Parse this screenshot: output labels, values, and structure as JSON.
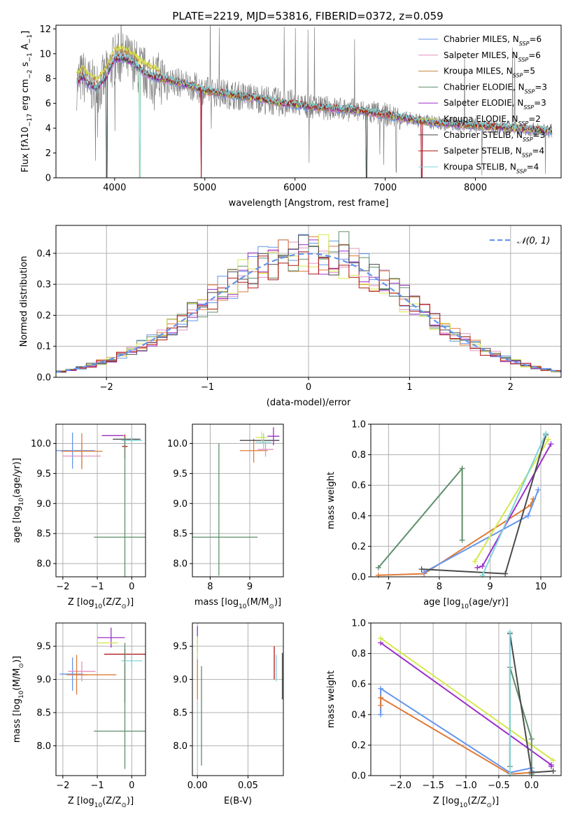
{
  "figure_title": "PLATE=2219, MJD=53816, FIBERID=0372, z=0.059",
  "colors": {
    "data": "#808080",
    "chabrier_miles": "#6495ed",
    "salpeter_miles": "#e392c0",
    "kroupa_miles": "#c08a3a",
    "chabrier_elodie": "#5f8f6a",
    "salpeter_elodie": "#9b30c9",
    "kroupa_elodie": "#d6e84d",
    "chabrier_stelib": "#4a4a4a",
    "salpeter_stelib": "#b01818",
    "kroupa_stelib": "#7fd4d8",
    "orange_mix": "#e07b39",
    "grid": "#b0b0b0"
  },
  "chart_data": [
    {
      "id": "spectrum",
      "type": "line",
      "title": "PLATE=2219, MJD=53816, FIBERID=0372, z=0.059",
      "xlabel": "wavelength [Angstrom, rest frame]",
      "ylabel_parts": [
        "Flux [f",
        "λ",
        "10",
        "−17",
        " erg cm",
        "−2",
        " s",
        "−1",
        " A",
        "−1",
        "]"
      ],
      "xlim": [
        3350,
        8950
      ],
      "ylim": [
        0,
        12.3
      ],
      "xticks": [
        "4000",
        "5000",
        "6000",
        "7000",
        "8000"
      ],
      "xtick_values": [
        4000,
        5000,
        6000,
        7000,
        8000
      ],
      "yticks": [
        "0",
        "2",
        "4",
        "6",
        "8",
        "10",
        "12"
      ],
      "ytick_values": [
        0,
        2,
        4,
        6,
        8,
        10,
        12
      ],
      "grid": false,
      "legend_position": "top-right",
      "legend": [
        {
          "label": "Chabrier MILES, N",
          "sub": "SSP",
          "suffix": "=6",
          "color": "#6495ed"
        },
        {
          "label": "Salpeter MILES, N",
          "sub": "SSP",
          "suffix": "=6",
          "color": "#e392c0"
        },
        {
          "label": "Kroupa MILES, N",
          "sub": "SSP",
          "suffix": "=5",
          "color": "#c08a3a"
        },
        {
          "label": "Chabrier ELODIE, N",
          "sub": "SSP",
          "suffix": "=3",
          "color": "#5f8f6a"
        },
        {
          "label": "Salpeter ELODIE, N",
          "sub": "SSP",
          "suffix": "=3",
          "color": "#9b30c9"
        },
        {
          "label": "Kroupa ELODIE, N",
          "sub": "SSP",
          "suffix": "=2",
          "color": "#d6e84d"
        },
        {
          "label": "Chabrier STELIB, N",
          "sub": "SSP",
          "suffix": "=3",
          "color": "#4a4a4a"
        },
        {
          "label": "Salpeter STELIB, N",
          "sub": "SSP",
          "suffix": "=4",
          "color": "#b01818"
        },
        {
          "label": "Kroupa STELIB, N",
          "sub": "SSP",
          "suffix": "=4",
          "color": "#7fd4d8"
        }
      ],
      "continuum_model": {
        "x": [
          3580,
          3650,
          3700,
          3800,
          3900,
          4000,
          4100,
          4200,
          4300,
          4400,
          4500,
          4600,
          4700,
          4800,
          4900,
          5000,
          5200,
          5400,
          5600,
          5800,
          6000,
          6200,
          6400,
          6600,
          6800,
          7000,
          7200,
          7400,
          7600,
          7800,
          8000,
          8200,
          8400,
          8600,
          8800
        ],
        "y": [
          7.6,
          8.2,
          7.6,
          7.2,
          8.0,
          9.6,
          9.6,
          9.3,
          8.6,
          8.2,
          8.0,
          7.9,
          7.7,
          7.5,
          7.3,
          7.0,
          6.8,
          6.6,
          6.4,
          6.1,
          5.9,
          5.7,
          5.6,
          5.5,
          5.3,
          5.1,
          4.8,
          4.6,
          4.4,
          4.3,
          4.2,
          4.1,
          4.0,
          3.9,
          3.8
        ]
      },
      "spectrum_note_visible": "",
      "drops": [
        3915,
        4280,
        4960,
        6795,
        7405
      ]
    },
    {
      "id": "residuals",
      "type": "histogram",
      "xlabel": "(data-model)/error",
      "ylabel": "Normed distribution",
      "xlim": [
        -2.5,
        2.5
      ],
      "ylim": [
        0,
        0.49
      ],
      "xticks": [
        "−2",
        "−1",
        "0",
        "1",
        "2"
      ],
      "xtick_values": [
        -2,
        -1,
        0,
        1,
        2
      ],
      "yticks": [
        "0.0",
        "0.1",
        "0.2",
        "0.3",
        "0.4"
      ],
      "ytick_values": [
        0,
        0.1,
        0.2,
        0.3,
        0.4
      ],
      "grid": true,
      "legend_position": "top-right",
      "legend": [
        {
          "label": "𝒩(0, 1)",
          "color": "#6495ed",
          "dashed": true
        }
      ],
      "bin_width": 0.1,
      "bin_start": -2.5,
      "gaussian": {
        "mean": 0,
        "sigma": 1,
        "style": "dashed"
      }
    },
    {
      "id": "age_vs_Z",
      "type": "scatter",
      "xlabel_parts": [
        "Z [log",
        "10",
        "(Z/Z",
        "⊙",
        ")]"
      ],
      "ylabel_parts": [
        "age  [log",
        "10",
        "(age/yr)]"
      ],
      "xlim": [
        -2.2,
        0.4
      ],
      "ylim": [
        7.78,
        10.32
      ],
      "xticks": [
        "−2",
        "−1",
        "0"
      ],
      "xtick_values": [
        -2,
        -1,
        0
      ],
      "yticks": [
        "8.0",
        "8.5",
        "9.0",
        "9.5",
        "10.0"
      ],
      "ytick_values": [
        8.0,
        8.5,
        9.0,
        9.5,
        10.0
      ],
      "grid": true,
      "points": [
        {
          "x": -1.72,
          "y": 9.88,
          "xerr": 0.65,
          "yerr": 0.3,
          "color": "#6495ed"
        },
        {
          "x": -1.9,
          "y": 9.88,
          "xerr": 0.1,
          "yerr": 0.0,
          "color": "#6495ed"
        },
        {
          "x": -1.45,
          "y": 9.79,
          "xerr": 0.55,
          "yerr": 0.2,
          "color": "#e392c0"
        },
        {
          "x": -1.45,
          "y": 9.87,
          "xerr": 0.6,
          "yerr": 0.3,
          "color": "#e07b39"
        },
        {
          "x": -0.55,
          "y": 10.13,
          "xerr": 0.3,
          "yerr": 0.0,
          "color": "#d6e84d"
        },
        {
          "x": -0.55,
          "y": 10.13,
          "xerr": 0.32,
          "yerr": 0.0,
          "color": "#9b30c9"
        },
        {
          "x": -0.2,
          "y": 9.95,
          "xerr": 0.08,
          "yerr": 0.2,
          "color": "#b01818"
        },
        {
          "x": -0.15,
          "y": 10.07,
          "xerr": 0.4,
          "yerr": 0.0,
          "color": "#4a4a4a"
        },
        {
          "x": 0.0,
          "y": 10.05,
          "xerr": 0.3,
          "yerr": 0.08,
          "color": "#7fd4d8"
        },
        {
          "x": -0.3,
          "y": 8.44,
          "xerr": 0.8,
          "yerr": 0.0,
          "color": "#5f8f6a"
        },
        {
          "x": -0.2,
          "y": 8.9,
          "xerr": 0.0,
          "yerr": 1.2,
          "color": "#5f8f6a"
        }
      ]
    },
    {
      "id": "age_vs_mass",
      "type": "scatter",
      "xlabel_parts": [
        "mass [log",
        "10",
        "(M/M",
        "⊙",
        ")]"
      ],
      "xlim": [
        7.55,
        9.85
      ],
      "ylim": [
        7.78,
        10.32
      ],
      "xticks": [
        "8",
        "9"
      ],
      "xtick_values": [
        8,
        9
      ],
      "yticks": [
        "8.0",
        "8.5",
        "9.0",
        "9.5",
        "10.0"
      ],
      "ytick_values": [
        8.0,
        8.5,
        9.0,
        9.5,
        10.0
      ],
      "grid": true,
      "points": [
        {
          "x": 8.22,
          "y": 8.44,
          "xerr": 0.98,
          "yerr": 0.0,
          "color": "#5f8f6a"
        },
        {
          "x": 8.22,
          "y": 8.9,
          "xerr": 0.0,
          "yerr": 1.1,
          "color": "#5f8f6a"
        },
        {
          "x": 9.1,
          "y": 9.88,
          "xerr": 0.35,
          "yerr": 0.2,
          "color": "#e07b39"
        },
        {
          "x": 9.25,
          "y": 10.05,
          "xerr": 0.5,
          "yerr": 0.0,
          "color": "#4a4a4a"
        },
        {
          "x": 9.4,
          "y": 9.9,
          "xerr": 0.2,
          "yerr": 0.12,
          "color": "#e392c0"
        },
        {
          "x": 9.6,
          "y": 10.12,
          "xerr": 0.15,
          "yerr": 0.15,
          "color": "#9b30c9"
        },
        {
          "x": 9.3,
          "y": 10.1,
          "xerr": 0.15,
          "yerr": 0.1,
          "color": "#d6e84d"
        },
        {
          "x": 9.35,
          "y": 10.02,
          "xerr": 0.2,
          "yerr": 0.15,
          "color": "#7fd4d8"
        }
      ]
    },
    {
      "id": "weight_vs_age",
      "type": "line",
      "xlabel_parts": [
        "age  [log",
        "10",
        "(age/yr)]"
      ],
      "ylabel": "mass weight",
      "xlim": [
        6.65,
        10.4
      ],
      "ylim": [
        0,
        1.0
      ],
      "xticks": [
        "7",
        "8",
        "9",
        "10"
      ],
      "xtick_values": [
        7,
        8,
        9,
        10
      ],
      "yticks": [
        "0.0",
        "0.2",
        "0.4",
        "0.6",
        "0.8",
        "1.0"
      ],
      "ytick_values": [
        0,
        0.2,
        0.4,
        0.6,
        0.8,
        1.0
      ],
      "grid": true,
      "series": [
        {
          "color": "#5f8f6a",
          "x": [
            6.8,
            8.45,
            8.45
          ],
          "y": [
            0.06,
            0.71,
            0.24
          ]
        },
        {
          "color": "#e07b39",
          "x": [
            6.8,
            7.7,
            9.8,
            9.85
          ],
          "y": [
            0.01,
            0.02,
            0.47,
            0.51
          ]
        },
        {
          "color": "#6495ed",
          "x": [
            7.7,
            9.75,
            9.95
          ],
          "y": [
            0.03,
            0.4,
            0.57
          ]
        },
        {
          "color": "#9b30c9",
          "x": [
            8.75,
            8.85,
            10.2
          ],
          "y": [
            0.06,
            0.07,
            0.87
          ]
        },
        {
          "color": "#d6e84d",
          "x": [
            8.7,
            10.15
          ],
          "y": [
            0.1,
            0.9
          ]
        },
        {
          "color": "#4a4a4a",
          "x": [
            7.65,
            9.3,
            10.1
          ],
          "y": [
            0.05,
            0.02,
            0.93
          ]
        },
        {
          "color": "#7fd4d8",
          "x": [
            8.85,
            10.1
          ],
          "y": [
            0.01,
            0.94
          ]
        }
      ]
    },
    {
      "id": "mass_vs_Z",
      "type": "scatter",
      "xlabel_parts": [
        "Z [log",
        "10",
        "(Z/Z",
        "⊙",
        ")]"
      ],
      "ylabel_parts": [
        "mass [log",
        "10",
        "(M/M",
        "⊙",
        ")]"
      ],
      "xlim": [
        -2.2,
        0.4
      ],
      "ylim": [
        7.55,
        9.85
      ],
      "xticks": [
        "−2",
        "−1",
        "0"
      ],
      "xtick_values": [
        -2,
        -1,
        0
      ],
      "yticks": [
        "8.0",
        "8.5",
        "9.0",
        "9.5"
      ],
      "ytick_values": [
        8.0,
        8.5,
        9.0,
        9.5
      ],
      "grid": true,
      "points": [
        {
          "x": -1.72,
          "y": 9.08,
          "xerr": 0.3,
          "yerr": 0.25,
          "color": "#6495ed"
        },
        {
          "x": -1.9,
          "y": 9.08,
          "xerr": 0.2,
          "yerr": 0.0,
          "color": "#6495ed"
        },
        {
          "x": -1.45,
          "y": 9.12,
          "xerr": 0.4,
          "yerr": 0.15,
          "color": "#e392c0"
        },
        {
          "x": -1.6,
          "y": 9.07,
          "xerr": 0.3,
          "yerr": 0.3,
          "color": "#e07b39"
        },
        {
          "x": -1.0,
          "y": 9.07,
          "xerr": 0.55,
          "yerr": 0.0,
          "color": "#e07b39"
        },
        {
          "x": -0.6,
          "y": 9.63,
          "xerr": 0.4,
          "yerr": 0.15,
          "color": "#9b30c9"
        },
        {
          "x": -0.7,
          "y": 9.55,
          "xerr": 0.3,
          "yerr": 0.0,
          "color": "#d6e84d"
        },
        {
          "x": -0.2,
          "y": 9.38,
          "xerr": 0.6,
          "yerr": 0.08,
          "color": "#b01818"
        },
        {
          "x": 0.0,
          "y": 9.28,
          "xerr": 0.3,
          "yerr": 0.1,
          "color": "#7fd4d8"
        },
        {
          "x": -0.2,
          "y": 8.95,
          "xerr": 0.0,
          "yerr": 0.3,
          "color": "#4a4a4a"
        },
        {
          "x": -0.3,
          "y": 8.22,
          "xerr": 0.8,
          "yerr": 0.0,
          "color": "#5f8f6a"
        },
        {
          "x": -0.2,
          "y": 8.6,
          "xerr": 0.0,
          "yerr": 0.95,
          "color": "#5f8f6a"
        }
      ]
    },
    {
      "id": "mass_vs_EBV",
      "type": "scatter",
      "xlabel": "E(B-V)",
      "xlim": [
        -0.005,
        0.085
      ],
      "ylim": [
        7.55,
        9.85
      ],
      "xticks": [
        "0.00",
        "0.05"
      ],
      "xtick_values": [
        0.0,
        0.05
      ],
      "yticks": [
        "8.0",
        "8.5",
        "9.0",
        "9.5"
      ],
      "ytick_values": [
        8.0,
        8.5,
        9.0,
        9.5
      ],
      "grid": true,
      "points": [
        {
          "x": 0.0,
          "y": 9.6,
          "xerr": 0.0,
          "yerr": 0.2,
          "color": "#9b30c9"
        },
        {
          "x": 0.0,
          "y": 9.5,
          "xerr": 0.0,
          "yerr": 0.15,
          "color": "#d6e84d"
        },
        {
          "x": 0.0,
          "y": 9.0,
          "xerr": 0.0,
          "yerr": 0.3,
          "color": "#e07b39"
        },
        {
          "x": 0.004,
          "y": 8.45,
          "xerr": 0.0,
          "yerr": 0.75,
          "color": "#5f8f6a"
        },
        {
          "x": 0.076,
          "y": 9.25,
          "xerr": 0.0,
          "yerr": 0.25,
          "color": "#b01818"
        },
        {
          "x": 0.078,
          "y": 9.17,
          "xerr": 0.0,
          "yerr": 0.2,
          "color": "#7fd4d8"
        },
        {
          "x": 0.084,
          "y": 9.05,
          "xerr": 0.0,
          "yerr": 0.35,
          "color": "#4a4a4a"
        }
      ]
    },
    {
      "id": "weight_vs_Z",
      "type": "line",
      "xlabel_parts": [
        "Z [log",
        "10",
        "(Z/Z",
        "⊙",
        ")]"
      ],
      "ylabel": "mass weight",
      "xlim": [
        -2.45,
        0.45
      ],
      "ylim": [
        0,
        1.0
      ],
      "xticks": [
        "−2.0",
        "−1.5",
        "−1.0",
        "−0.5",
        "0.0"
      ],
      "xtick_values": [
        -2.0,
        -1.5,
        -1.0,
        -0.5,
        0.0
      ],
      "yticks": [
        "0.0",
        "0.2",
        "0.4",
        "0.6",
        "0.8",
        "1.0"
      ],
      "ytick_values": [
        0,
        0.2,
        0.4,
        0.6,
        0.8,
        1.0
      ],
      "grid": true,
      "series": [
        {
          "color": "#6495ed",
          "x": [
            -2.3,
            -2.3,
            -0.33,
            0.0,
            0.0
          ],
          "y": [
            0.4,
            0.57,
            0.02,
            0.05,
            0.03
          ]
        },
        {
          "color": "#e07b39",
          "x": [
            -2.3,
            -2.3,
            -0.33,
            0.0
          ],
          "y": [
            0.46,
            0.51,
            0.01,
            0.02
          ]
        },
        {
          "color": "#9b30c9",
          "x": [
            -2.3,
            0.3,
            0.3
          ],
          "y": [
            0.87,
            0.07,
            0.06
          ]
        },
        {
          "color": "#d6e84d",
          "x": [
            -2.3,
            0.33
          ],
          "y": [
            0.9,
            0.1
          ]
        },
        {
          "color": "#5f8f6a",
          "x": [
            -0.33,
            -0.33,
            0.0,
            0.0
          ],
          "y": [
            0.06,
            0.71,
            0.24,
            0.01
          ]
        },
        {
          "color": "#4a4a4a",
          "x": [
            -0.33,
            0.0,
            0.33
          ],
          "y": [
            0.93,
            0.02,
            0.03
          ]
        },
        {
          "color": "#7fd4d8",
          "x": [
            -0.33,
            -0.33
          ],
          "y": [
            0.01,
            0.94
          ]
        }
      ]
    }
  ]
}
